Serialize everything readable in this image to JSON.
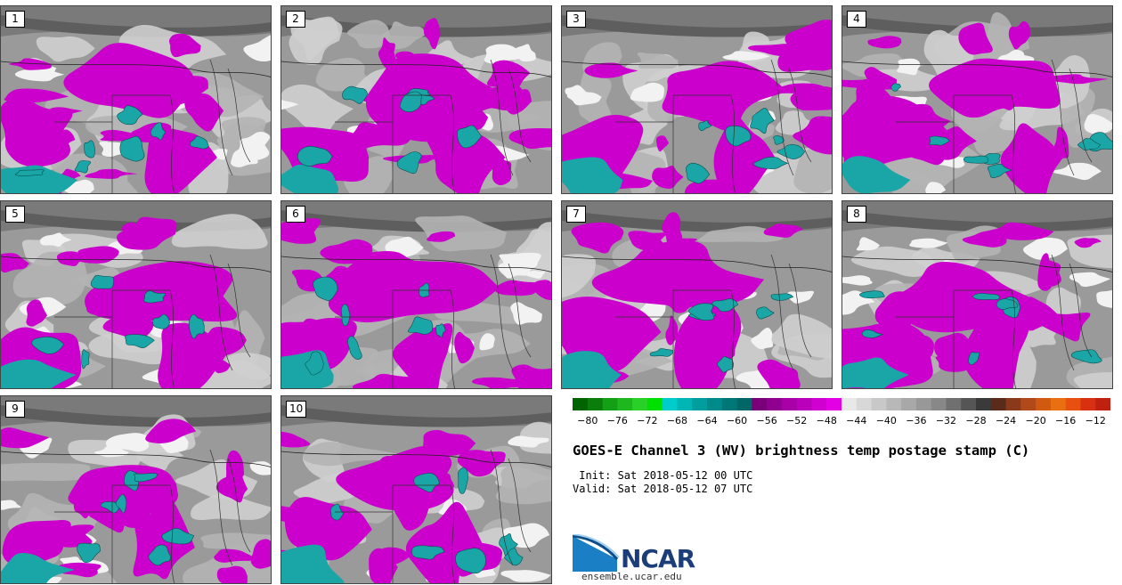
{
  "panels": [
    "1",
    "2",
    "3",
    "4",
    "5",
    "6",
    "7",
    "8",
    "9",
    "10"
  ],
  "colorbar": {
    "colors": [
      "#006400",
      "#0a7d0a",
      "#14a014",
      "#1eb81e",
      "#28d028",
      "#00e000",
      "#00cccc",
      "#00b5b5",
      "#009e9e",
      "#008a8a",
      "#007777",
      "#006666",
      "#7a007a",
      "#900090",
      "#a600a6",
      "#bb00bb",
      "#d000d0",
      "#e400e4",
      "#e8e8e8",
      "#d8d8d8",
      "#c8c8c8",
      "#b8b8b8",
      "#a8a8a8",
      "#989898",
      "#888888",
      "#707070",
      "#555555",
      "#3a3a3a",
      "#5a2a1a",
      "#8a3a1a",
      "#b04a1a",
      "#d05a10",
      "#e87010",
      "#e85010",
      "#d83010",
      "#c02010"
    ],
    "tick_values": [
      -80,
      -76,
      -72,
      -68,
      -64,
      -60,
      -56,
      -52,
      -48,
      -44,
      -40,
      -36,
      -32,
      -28,
      -24,
      -20,
      -16,
      -12
    ],
    "tick_labels": [
      "−80",
      "−76",
      "−72",
      "−68",
      "−64",
      "−60",
      "−56",
      "−52",
      "−48",
      "−44",
      "−40",
      "−36",
      "−32",
      "−28",
      "−24",
      "−20",
      "−16",
      "−12"
    ],
    "min": -82,
    "max": -10
  },
  "title": "GOES-E Channel 3 (WV) brightness temp postage stamp (C)",
  "init": " Init: Sat 2018-05-12 00 UTC",
  "valid": "Valid: Sat 2018-05-12 07 UTC",
  "logo_text": "NCAR",
  "website": "ensemble.ucar.edu",
  "colors": {
    "magenta": "#cc00cc",
    "teal": "#1aa6a6",
    "gray_light": "#cfcfcf",
    "gray_mid": "#9a9a9a",
    "gray_dark": "#5e5e5e",
    "white": "#f2f2f2"
  }
}
